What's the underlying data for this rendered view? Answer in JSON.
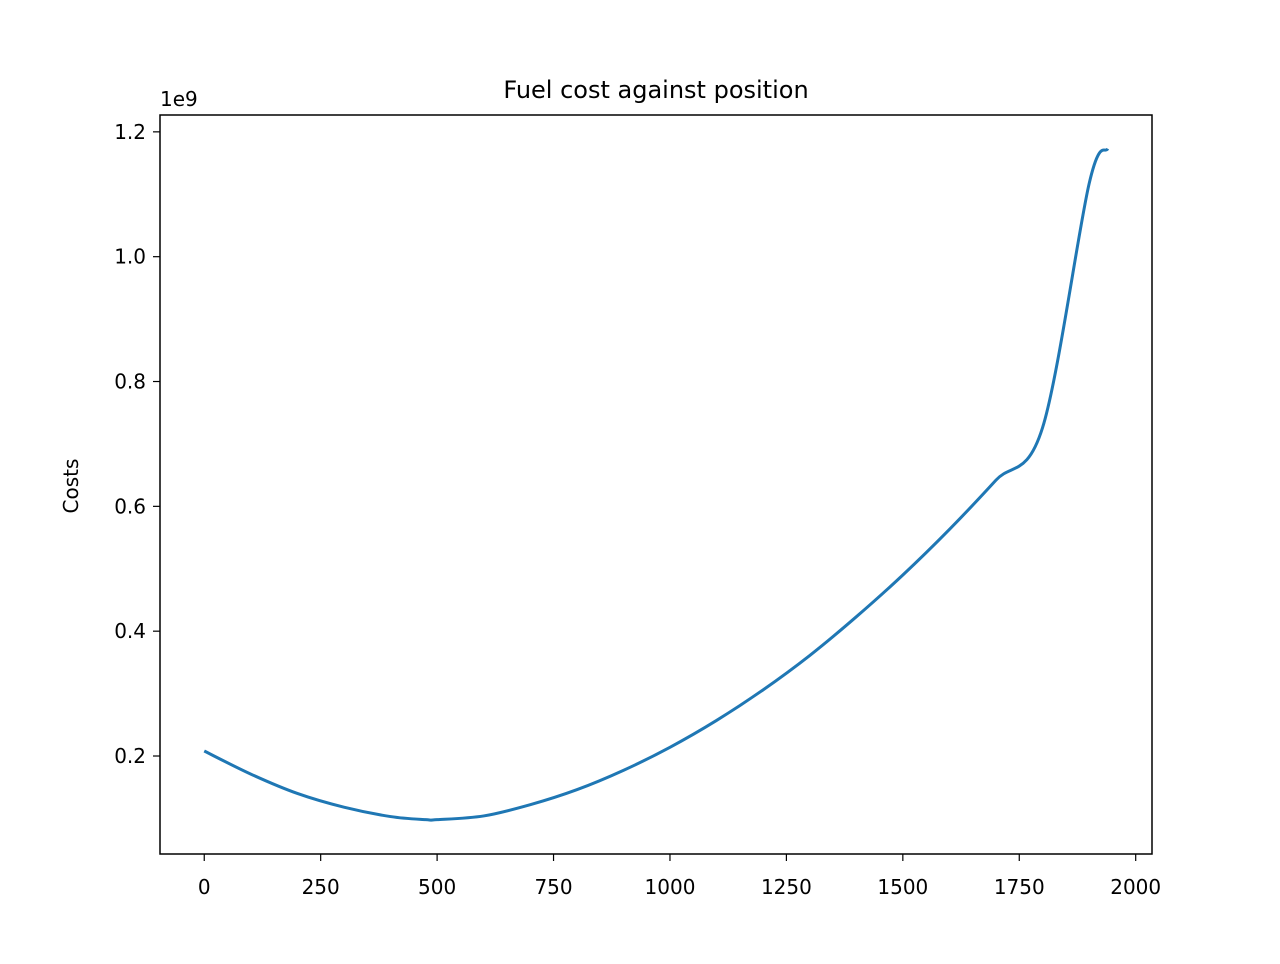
{
  "chart_data": {
    "type": "line",
    "title": "Fuel cost against position",
    "xlabel": "",
    "ylabel": "Costs",
    "y_offset_label": "1e9",
    "y_scale": 1000000000,
    "xlim": [
      -95,
      2035
    ],
    "ylim": [
      43000000,
      1227000000
    ],
    "x_ticks": [
      0,
      250,
      500,
      750,
      1000,
      1250,
      1500,
      1750,
      2000
    ],
    "x_tick_labels": [
      "0",
      "250",
      "500",
      "750",
      "1000",
      "1250",
      "1500",
      "1750",
      "2000"
    ],
    "y_ticks": [
      200000000,
      400000000,
      600000000,
      800000000,
      1000000000,
      1200000000
    ],
    "y_tick_labels": [
      "0.2",
      "0.4",
      "0.6",
      "0.8",
      "1.0",
      "1.2"
    ],
    "grid": false,
    "series": [
      {
        "color": "#1f77b4",
        "x": [
          0,
          100,
          200,
          300,
          400,
          475,
          500,
          600,
          700,
          800,
          900,
          1000,
          1100,
          1200,
          1300,
          1400,
          1500,
          1600,
          1700,
          1800,
          1900,
          1940
        ],
        "y": [
          208000000,
          171000000,
          140000000,
          118000000,
          103000000,
          98000000,
          98000000,
          104000000,
          122000000,
          146000000,
          177000000,
          214000000,
          257000000,
          306000000,
          361000000,
          423000000,
          490000000,
          563000000,
          642000000,
          726000000,
          1117000000,
          1173000000
        ]
      }
    ]
  }
}
